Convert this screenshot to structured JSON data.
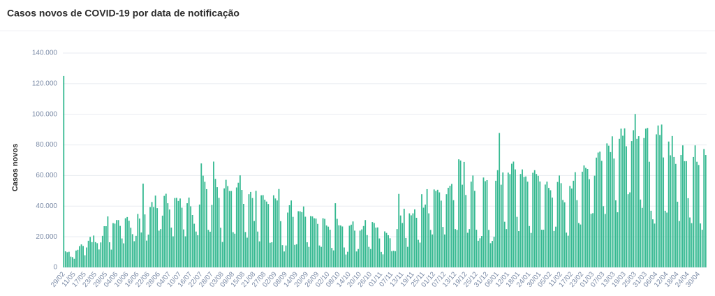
{
  "chart_data": {
    "type": "bar",
    "title": "Casos novos de COVID-19 por data de notificação",
    "y_label": "Casos novos",
    "color": "#35b991",
    "grid": true,
    "ylim": [
      0,
      140000
    ],
    "yticks": [
      0,
      {
        "value": 20000,
        "label": "20.000"
      },
      {
        "value": 40000,
        "label": "40.000"
      },
      {
        "value": 60000,
        "label": "60.000"
      },
      {
        "value": 80000,
        "label": "80.000"
      },
      {
        "value": 100000,
        "label": "100.000"
      },
      {
        "value": 120000,
        "label": "120.000"
      },
      {
        "value": 140000,
        "label": "140.000"
      }
    ],
    "categories": [
      "29/02",
      null,
      null,
      null,
      null,
      null,
      "11/05",
      null,
      null,
      null,
      null,
      null,
      "17/05",
      null,
      null,
      null,
      null,
      null,
      "23/05",
      null,
      null,
      null,
      null,
      null,
      "29/05",
      null,
      null,
      null,
      null,
      null,
      "04/06",
      null,
      null,
      null,
      null,
      null,
      "10/06",
      null,
      null,
      null,
      null,
      null,
      "16/06",
      null,
      null,
      null,
      null,
      null,
      "22/06",
      null,
      null,
      null,
      null,
      null,
      "28/06",
      null,
      null,
      null,
      null,
      null,
      "04/07",
      null,
      null,
      null,
      null,
      null,
      "10/07",
      null,
      null,
      null,
      null,
      null,
      "16/07",
      null,
      null,
      null,
      null,
      null,
      "22/07",
      null,
      null,
      null,
      null,
      null,
      "28/07",
      null,
      null,
      null,
      null,
      null,
      "03/08",
      null,
      null,
      null,
      null,
      null,
      "09/08",
      null,
      null,
      null,
      null,
      null,
      "15/08",
      null,
      null,
      null,
      null,
      null,
      "21/08",
      null,
      null,
      null,
      null,
      null,
      "27/08",
      null,
      null,
      null,
      null,
      null,
      "02/09",
      null,
      null,
      null,
      null,
      null,
      "08/09",
      null,
      null,
      null,
      null,
      null,
      "14/09",
      null,
      null,
      null,
      null,
      null,
      "20/09",
      null,
      null,
      null,
      null,
      null,
      "26/09",
      null,
      null,
      null,
      null,
      null,
      "02/10",
      null,
      null,
      null,
      null,
      null,
      "08/10",
      null,
      null,
      null,
      null,
      null,
      "14/10",
      null,
      null,
      null,
      null,
      null,
      "20/10",
      null,
      null,
      null,
      null,
      null,
      "26/10",
      null,
      null,
      null,
      null,
      null,
      "01/11",
      null,
      null,
      null,
      null,
      null,
      "07/11",
      null,
      null,
      null,
      null,
      null,
      "13/11",
      null,
      null,
      null,
      null,
      null,
      "19/11",
      null,
      null,
      null,
      null,
      null,
      "25/11",
      null,
      null,
      null,
      null,
      null,
      "01/12",
      null,
      null,
      null,
      null,
      null,
      "07/12",
      null,
      null,
      null,
      null,
      null,
      "13/12",
      null,
      null,
      null,
      null,
      null,
      "19/12",
      null,
      null,
      null,
      null,
      null,
      "25/12",
      null,
      null,
      null,
      null,
      null,
      "31/12",
      null,
      null,
      null,
      null,
      null,
      "06/01",
      null,
      null,
      null,
      null,
      null,
      "12/01",
      null,
      null,
      null,
      null,
      null,
      "18/01",
      null,
      null,
      null,
      null,
      null,
      "24/01",
      null,
      null,
      null,
      null,
      null,
      "30/01",
      null,
      null,
      null,
      null,
      null,
      "05/02",
      null,
      null,
      null,
      null,
      null,
      "11/02",
      null,
      null,
      null,
      null,
      null,
      "17/02",
      null,
      null,
      null,
      null,
      null,
      "23/02",
      null,
      null,
      null,
      null,
      null,
      "01/03",
      null,
      null,
      null,
      null,
      null,
      "07/03",
      null,
      null,
      null,
      null,
      null,
      "13/03",
      null,
      null,
      null,
      null,
      null,
      "19/03",
      null,
      null,
      null,
      null,
      null,
      "25/03",
      null,
      null,
      null,
      null,
      null,
      "31/03",
      null,
      null,
      null,
      null,
      null,
      "06/04",
      null,
      null,
      null,
      null,
      null,
      "12/04",
      null,
      null,
      null,
      null,
      null,
      "18/04",
      null,
      null,
      null,
      null,
      null,
      "24/04",
      null,
      null,
      null,
      null,
      null,
      "30/04",
      null,
      null,
      null,
      null
    ],
    "values": [
      125000,
      10500,
      9900,
      10200,
      7000,
      6700,
      5600,
      11000,
      11500,
      13900,
      15000,
      14000,
      7900,
      13000,
      17400,
      19900,
      16500,
      20800,
      16500,
      15800,
      11700,
      16300,
      20600,
      26900,
      26900,
      33300,
      16400,
      11600,
      28900,
      28600,
      30900,
      30900,
      27100,
      18900,
      15700,
      32100,
      32900,
      30500,
      25900,
      21700,
      17100,
      20600,
      34900,
      31900,
      22800,
      54700,
      34600,
      17500,
      21400,
      39400,
      42700,
      39400,
      46900,
      38700,
      24000,
      25000,
      33800,
      46700,
      48100,
      41900,
      37800,
      26000,
      20300,
      45300,
      45400,
      43400,
      45000,
      39000,
      24800,
      20300,
      41900,
      45600,
      39900,
      34200,
      28500,
      23400,
      21000,
      41000,
      67900,
      59900,
      55900,
      51100,
      24500,
      23300,
      40800,
      69100,
      57800,
      52400,
      45400,
      25900,
      16600,
      51600,
      57200,
      53100,
      49900,
      49900,
      23000,
      22000,
      52200,
      55300,
      60100,
      50600,
      41500,
      23100,
      19400,
      47800,
      49300,
      45300,
      30300,
      50000,
      23400,
      17000,
      47100,
      47200,
      44200,
      43000,
      41400,
      16100,
      16400,
      47100,
      45000,
      43700,
      51200,
      30200,
      14500,
      10400,
      14300,
      35800,
      40600,
      43700,
      33000,
      14700,
      15100,
      36700,
      36600,
      36100,
      39800,
      33100,
      16400,
      13400,
      33500,
      33300,
      32100,
      31900,
      28400,
      14300,
      13400,
      32100,
      31700,
      27400,
      26600,
      24600,
      12700,
      11100,
      41900,
      31700,
      27500,
      27400,
      26700,
      13000,
      8400,
      10200,
      27200,
      27900,
      30000,
      24000,
      10400,
      12000,
      24000,
      24800,
      27000,
      30900,
      21100,
      13400,
      12000,
      29600,
      29000,
      26000,
      26100,
      18900,
      10100,
      8500,
      23500,
      22500,
      21000,
      19000,
      10600,
      10900,
      10600,
      25000,
      48000,
      33900,
      29000,
      38300,
      19200,
      13400,
      35300,
      34000,
      35300,
      37900,
      32400,
      18000,
      16200,
      47800,
      39000,
      41000,
      51100,
      35300,
      24500,
      21500,
      50900,
      49900,
      50700,
      49000,
      43600,
      26400,
      21500,
      47800,
      52000,
      53300,
      54500,
      43900,
      25000,
      24500,
      70600,
      69800,
      54000,
      68900,
      47300,
      22600,
      25000,
      56000,
      60000,
      50000,
      24600,
      17400,
      19000,
      20500,
      58700,
      56300,
      57000,
      24500,
      15800,
      17300,
      20000,
      56600,
      63500,
      87800,
      54000,
      62000,
      29800,
      25000,
      61900,
      60900,
      67700,
      69100,
      64000,
      33000,
      23700,
      61000,
      64000,
      59100,
      59400,
      56000,
      27000,
      22500,
      61800,
      63500,
      61000,
      59800,
      56100,
      24600,
      24600,
      54100,
      56000,
      51900,
      50400,
      45600,
      23800,
      26600,
      55800,
      60000,
      55000,
      44000,
      42500,
      22700,
      20700,
      53200,
      51500,
      56600,
      62200,
      43900,
      29000,
      28000,
      62500,
      66600,
      65000,
      64300,
      57600,
      35000,
      35400,
      59900,
      71700,
      75000,
      75600,
      69600,
      40000,
      34900,
      81000,
      79500,
      75300,
      85600,
      71100,
      43800,
      36000,
      84000,
      90600,
      86000,
      90800,
      79100,
      47800,
      49000,
      82500,
      89600,
      100200,
      84000,
      85700,
      44300,
      38900,
      84500,
      90600,
      91100,
      69000,
      37000,
      31400,
      28600,
      86900,
      92700,
      86500,
      93300,
      71800,
      37000,
      35800,
      82200,
      73200,
      85800,
      72100,
      67600,
      42900,
      30300,
      73400,
      79700,
      69400,
      69400,
      45200,
      32600,
      28900,
      72100,
      79700,
      69000,
      66900,
      28700,
      24600,
      77300,
      73400
    ]
  }
}
